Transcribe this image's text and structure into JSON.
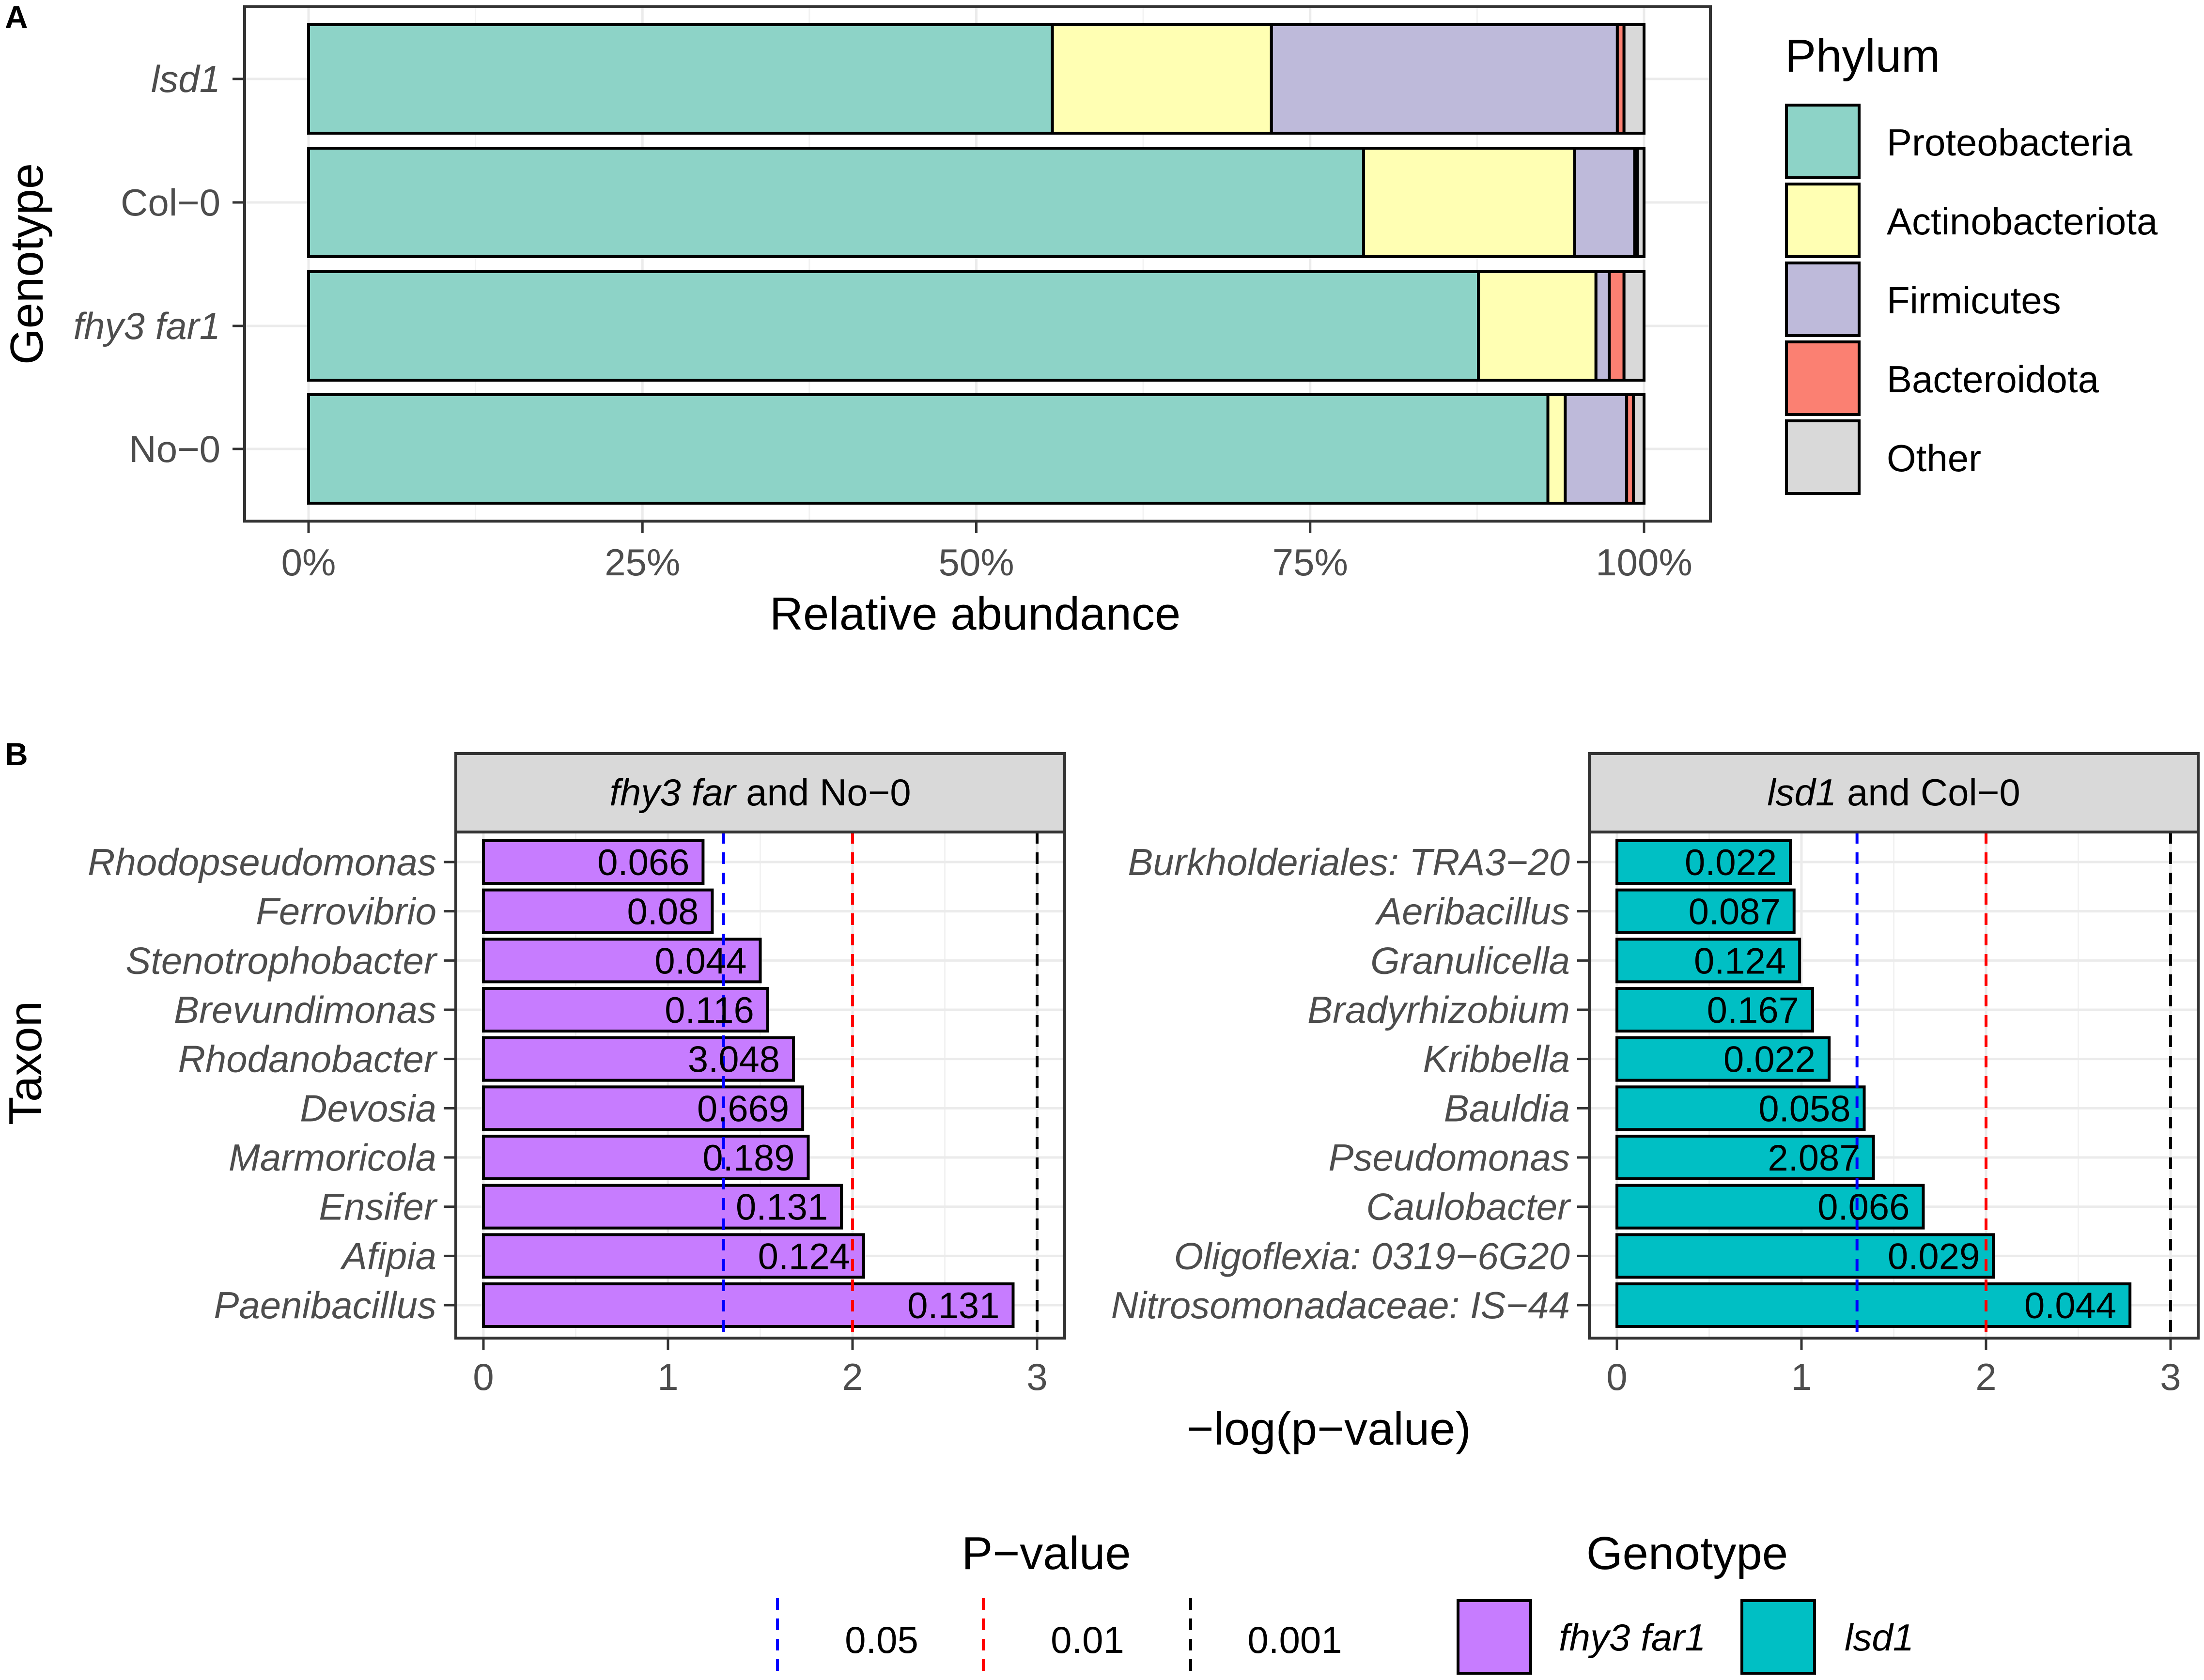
{
  "chart_data": [
    {
      "type": "bar",
      "orientation": "horizontal",
      "stacked": true,
      "panel_label": "A",
      "xlabel": "Relative abundance",
      "ylabel": "Genotype",
      "xlim": [
        0,
        100
      ],
      "xticks": [
        "0%",
        "25%",
        "50%",
        "75%",
        "100%"
      ],
      "categories": [
        "lsd1",
        "Col−0",
        "fhy3 far1",
        "No−0"
      ],
      "category_italic": [
        true,
        false,
        true,
        false
      ],
      "legend_title": "Phylum",
      "legend_position": "right",
      "series": [
        {
          "name": "Proteobacteria",
          "color": "#8DD3C7",
          "values": [
            55.7,
            79.0,
            87.6,
            92.8
          ]
        },
        {
          "name": "Actinobacteriota",
          "color": "#FFFFB3",
          "values": [
            16.4,
            15.8,
            8.8,
            1.3
          ]
        },
        {
          "name": "Firmicutes",
          "color": "#BEBADA",
          "values": [
            25.9,
            4.5,
            1.0,
            4.6
          ]
        },
        {
          "name": "Bacteroidota",
          "color": "#FB8072",
          "values": [
            0.5,
            0.2,
            1.1,
            0.5
          ]
        },
        {
          "name": "Other",
          "color": "#D9D9D9",
          "values": [
            1.5,
            0.5,
            1.5,
            0.8
          ]
        }
      ]
    },
    {
      "type": "bar",
      "orientation": "horizontal",
      "panel_label": "B",
      "xlabel": "−log(p−value)",
      "ylabel": "Taxon",
      "xlim": [
        0,
        3
      ],
      "xticks": [
        "0",
        "1",
        "2",
        "3"
      ],
      "thresholds": [
        {
          "label": "0.05",
          "value": 1.301,
          "color": "#0000FF"
        },
        {
          "label": "0.01",
          "value": 2.0,
          "color": "#FF0000"
        },
        {
          "label": "0.001",
          "value": 3.0,
          "color": "#000000"
        }
      ],
      "threshold_legend_title": "P−value",
      "genotype_legend_title": "Genotype",
      "facets": [
        {
          "strip_italic": "fhy3 far",
          "strip_rest": " and No−0",
          "genotype": "fhy3 far1",
          "color": "#C77CFF",
          "taxa": [
            "Rhodopseudomonas",
            "Ferrovibrio",
            "Stenotrophobacter",
            "Brevundimonas",
            "Rhodanobacter",
            "Devosia",
            "Marmoricola",
            "Ensifer",
            "Afipia",
            "Paenibacillus"
          ],
          "values": [
            1.19,
            1.24,
            1.5,
            1.54,
            1.68,
            1.73,
            1.76,
            1.94,
            2.06,
            2.87
          ],
          "labels": [
            "0.066",
            "0.08",
            "0.044",
            "0.116",
            "3.048",
            "0.669",
            "0.189",
            "0.131",
            "0.124",
            "0.131"
          ]
        },
        {
          "strip_italic": "lsd1",
          "strip_rest": " and Col−0",
          "genotype": "lsd1",
          "color": "#00BFC4",
          "taxa": [
            "Burkholderiales: TRA3−20",
            "Aeribacillus",
            "Granulicella",
            "Bradyrhizobium",
            "Kribbella",
            "Bauldia",
            "Pseudomonas",
            "Caulobacter",
            "Oligoflexia: 0319−6G20",
            "Nitrosomonadaceae: IS−44"
          ],
          "values": [
            0.94,
            0.96,
            0.99,
            1.06,
            1.15,
            1.34,
            1.39,
            1.66,
            2.04,
            2.78
          ],
          "labels": [
            "0.022",
            "0.087",
            "0.124",
            "0.167",
            "0.022",
            "0.058",
            "2.087",
            "0.066",
            "0.029",
            "0.044"
          ]
        }
      ]
    }
  ]
}
